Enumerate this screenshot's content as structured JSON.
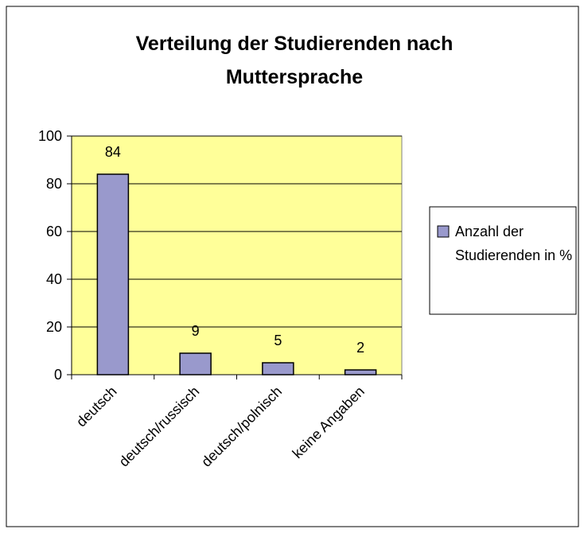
{
  "chart_data": {
    "type": "bar",
    "title": "Verteilung der Studierenden nach Muttersprache",
    "categories": [
      "deutsch",
      "deutsch/russisch",
      "deutsch/polnisch",
      "keine Angaben"
    ],
    "series": [
      {
        "name": "Anzahl der Studierenden in %",
        "color": "#9999cc",
        "values": [
          84,
          9,
          5,
          2
        ]
      }
    ],
    "ylim": [
      0,
      100
    ],
    "yticks": [
      0,
      20,
      40,
      60,
      80,
      100
    ],
    "grid": true,
    "plot_background": "#ffff99",
    "legend": "right"
  }
}
